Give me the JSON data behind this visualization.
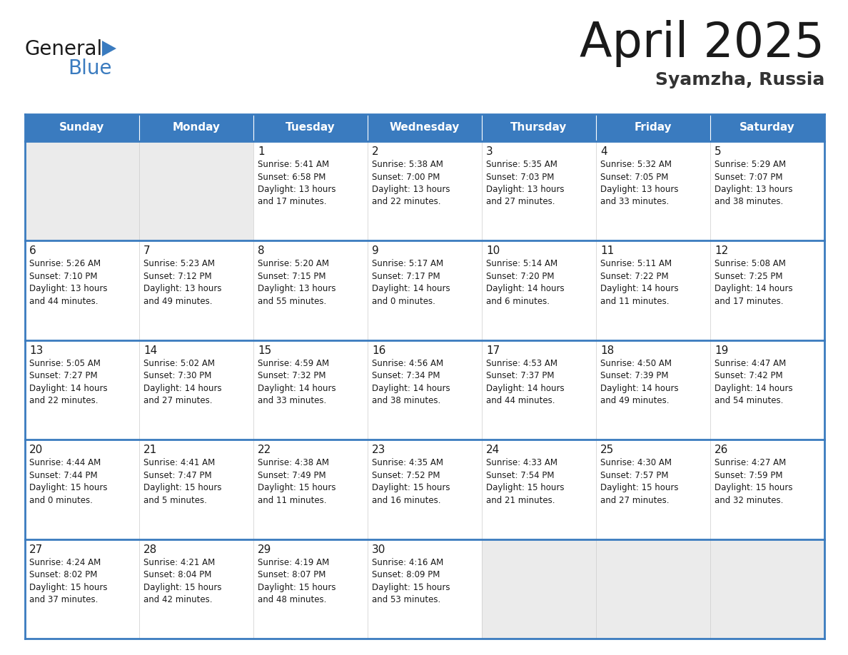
{
  "title": "April 2025",
  "subtitle": "Syamzha, Russia",
  "header_color": "#3a7bbf",
  "header_text_color": "#ffffff",
  "border_color": "#3a7bbf",
  "title_color": "#1a1a1a",
  "subtitle_color": "#333333",
  "text_color": "#1a1a1a",
  "empty_bg": "#ebebeb",
  "filled_bg": "#ffffff",
  "day_names": [
    "Sunday",
    "Monday",
    "Tuesday",
    "Wednesday",
    "Thursday",
    "Friday",
    "Saturday"
  ],
  "weeks": [
    [
      {
        "day": "",
        "info": ""
      },
      {
        "day": "",
        "info": ""
      },
      {
        "day": "1",
        "info": "Sunrise: 5:41 AM\nSunset: 6:58 PM\nDaylight: 13 hours\nand 17 minutes."
      },
      {
        "day": "2",
        "info": "Sunrise: 5:38 AM\nSunset: 7:00 PM\nDaylight: 13 hours\nand 22 minutes."
      },
      {
        "day": "3",
        "info": "Sunrise: 5:35 AM\nSunset: 7:03 PM\nDaylight: 13 hours\nand 27 minutes."
      },
      {
        "day": "4",
        "info": "Sunrise: 5:32 AM\nSunset: 7:05 PM\nDaylight: 13 hours\nand 33 minutes."
      },
      {
        "day": "5",
        "info": "Sunrise: 5:29 AM\nSunset: 7:07 PM\nDaylight: 13 hours\nand 38 minutes."
      }
    ],
    [
      {
        "day": "6",
        "info": "Sunrise: 5:26 AM\nSunset: 7:10 PM\nDaylight: 13 hours\nand 44 minutes."
      },
      {
        "day": "7",
        "info": "Sunrise: 5:23 AM\nSunset: 7:12 PM\nDaylight: 13 hours\nand 49 minutes."
      },
      {
        "day": "8",
        "info": "Sunrise: 5:20 AM\nSunset: 7:15 PM\nDaylight: 13 hours\nand 55 minutes."
      },
      {
        "day": "9",
        "info": "Sunrise: 5:17 AM\nSunset: 7:17 PM\nDaylight: 14 hours\nand 0 minutes."
      },
      {
        "day": "10",
        "info": "Sunrise: 5:14 AM\nSunset: 7:20 PM\nDaylight: 14 hours\nand 6 minutes."
      },
      {
        "day": "11",
        "info": "Sunrise: 5:11 AM\nSunset: 7:22 PM\nDaylight: 14 hours\nand 11 minutes."
      },
      {
        "day": "12",
        "info": "Sunrise: 5:08 AM\nSunset: 7:25 PM\nDaylight: 14 hours\nand 17 minutes."
      }
    ],
    [
      {
        "day": "13",
        "info": "Sunrise: 5:05 AM\nSunset: 7:27 PM\nDaylight: 14 hours\nand 22 minutes."
      },
      {
        "day": "14",
        "info": "Sunrise: 5:02 AM\nSunset: 7:30 PM\nDaylight: 14 hours\nand 27 minutes."
      },
      {
        "day": "15",
        "info": "Sunrise: 4:59 AM\nSunset: 7:32 PM\nDaylight: 14 hours\nand 33 minutes."
      },
      {
        "day": "16",
        "info": "Sunrise: 4:56 AM\nSunset: 7:34 PM\nDaylight: 14 hours\nand 38 minutes."
      },
      {
        "day": "17",
        "info": "Sunrise: 4:53 AM\nSunset: 7:37 PM\nDaylight: 14 hours\nand 44 minutes."
      },
      {
        "day": "18",
        "info": "Sunrise: 4:50 AM\nSunset: 7:39 PM\nDaylight: 14 hours\nand 49 minutes."
      },
      {
        "day": "19",
        "info": "Sunrise: 4:47 AM\nSunset: 7:42 PM\nDaylight: 14 hours\nand 54 minutes."
      }
    ],
    [
      {
        "day": "20",
        "info": "Sunrise: 4:44 AM\nSunset: 7:44 PM\nDaylight: 15 hours\nand 0 minutes."
      },
      {
        "day": "21",
        "info": "Sunrise: 4:41 AM\nSunset: 7:47 PM\nDaylight: 15 hours\nand 5 minutes."
      },
      {
        "day": "22",
        "info": "Sunrise: 4:38 AM\nSunset: 7:49 PM\nDaylight: 15 hours\nand 11 minutes."
      },
      {
        "day": "23",
        "info": "Sunrise: 4:35 AM\nSunset: 7:52 PM\nDaylight: 15 hours\nand 16 minutes."
      },
      {
        "day": "24",
        "info": "Sunrise: 4:33 AM\nSunset: 7:54 PM\nDaylight: 15 hours\nand 21 minutes."
      },
      {
        "day": "25",
        "info": "Sunrise: 4:30 AM\nSunset: 7:57 PM\nDaylight: 15 hours\nand 27 minutes."
      },
      {
        "day": "26",
        "info": "Sunrise: 4:27 AM\nSunset: 7:59 PM\nDaylight: 15 hours\nand 32 minutes."
      }
    ],
    [
      {
        "day": "27",
        "info": "Sunrise: 4:24 AM\nSunset: 8:02 PM\nDaylight: 15 hours\nand 37 minutes."
      },
      {
        "day": "28",
        "info": "Sunrise: 4:21 AM\nSunset: 8:04 PM\nDaylight: 15 hours\nand 42 minutes."
      },
      {
        "day": "29",
        "info": "Sunrise: 4:19 AM\nSunset: 8:07 PM\nDaylight: 15 hours\nand 48 minutes."
      },
      {
        "day": "30",
        "info": "Sunrise: 4:16 AM\nSunset: 8:09 PM\nDaylight: 15 hours\nand 53 minutes."
      },
      {
        "day": "",
        "info": ""
      },
      {
        "day": "",
        "info": ""
      },
      {
        "day": "",
        "info": ""
      }
    ]
  ],
  "logo_general_color": "#1a1a1a",
  "logo_blue_color": "#3a7bbf",
  "logo_triangle_color": "#3a7bbf"
}
